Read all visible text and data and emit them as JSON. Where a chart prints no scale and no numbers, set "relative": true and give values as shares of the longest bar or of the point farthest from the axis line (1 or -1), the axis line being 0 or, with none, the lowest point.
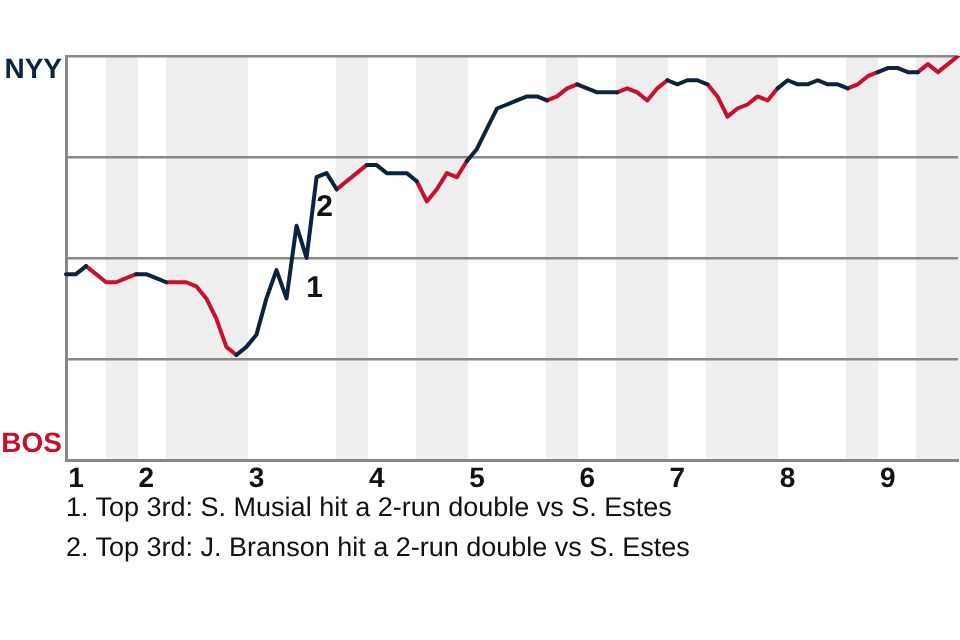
{
  "chart_data": {
    "type": "line",
    "relative": true,
    "categories": [
      null,
      "1",
      null,
      null,
      null,
      null,
      null,
      null,
      "2",
      null,
      null,
      null,
      null,
      null,
      null,
      null,
      null,
      null,
      null,
      "3",
      null,
      null,
      null,
      null,
      null,
      null,
      null,
      null,
      null,
      null,
      null,
      "4",
      null,
      null,
      null,
      null,
      null,
      null,
      null,
      null,
      null,
      "5",
      null,
      null,
      null,
      null,
      null,
      null,
      null,
      null,
      null,
      null,
      "6",
      null,
      null,
      null,
      null,
      null,
      null,
      null,
      null,
      "7",
      null,
      null,
      null,
      null,
      null,
      null,
      null,
      null,
      null,
      null,
      "8",
      null,
      null,
      null,
      null,
      null,
      null,
      null,
      null,
      null,
      "9",
      null,
      null,
      null,
      null,
      null,
      null,
      null
    ],
    "series": [
      {
        "color": "#0c2340",
        "values": [
          0.46,
          0.46,
          0.48,
          null,
          null,
          null,
          null,
          0.46,
          0.46,
          0.45,
          0.44,
          null,
          null,
          null,
          null,
          null,
          null,
          0.26,
          0.28,
          0.31,
          0.4,
          0.47,
          0.4,
          0.58,
          0.5,
          0.7,
          0.71,
          0.67,
          null,
          null,
          0.73,
          0.73,
          0.71,
          0.71,
          0.71,
          0.69,
          null,
          null,
          null,
          null,
          0.74,
          0.77,
          0.82,
          0.87,
          0.88,
          0.89,
          0.9,
          0.9,
          0.89,
          null,
          null,
          0.93,
          0.92,
          0.91,
          0.91,
          0.91,
          null,
          null,
          null,
          null,
          0.94,
          0.93,
          0.94,
          0.94,
          0.93,
          null,
          null,
          null,
          null,
          null,
          null,
          0.92,
          0.94,
          0.93,
          0.93,
          0.94,
          0.93,
          0.93,
          0.92,
          null,
          null,
          0.96,
          0.97,
          0.97,
          0.96,
          0.96,
          null,
          null,
          null,
          null
        ]
      },
      {
        "color": "#c8102e",
        "values": [
          null,
          null,
          0.48,
          0.46,
          0.44,
          0.44,
          0.45,
          0.46,
          null,
          null,
          0.44,
          0.44,
          0.44,
          0.43,
          0.4,
          0.35,
          0.28,
          0.26,
          null,
          null,
          null,
          null,
          null,
          null,
          null,
          null,
          null,
          0.67,
          0.69,
          0.71,
          0.73,
          null,
          null,
          null,
          null,
          0.69,
          0.64,
          0.67,
          0.71,
          0.7,
          0.74,
          null,
          null,
          null,
          null,
          null,
          null,
          null,
          0.89,
          0.9,
          0.92,
          0.93,
          null,
          null,
          null,
          0.91,
          0.92,
          0.91,
          0.89,
          0.92,
          0.94,
          null,
          null,
          null,
          0.93,
          0.9,
          0.85,
          0.87,
          0.88,
          0.9,
          0.89,
          0.92,
          null,
          null,
          null,
          null,
          null,
          null,
          0.92,
          0.93,
          0.95,
          0.96,
          null,
          null,
          null,
          0.96,
          0.98,
          0.96,
          0.98,
          1
        ]
      }
    ],
    "annotations": [
      "NYY",
      "BOS",
      {
        "text": "1",
        "y": 0.5
      },
      {
        "text": "2",
        "y": 0.7
      },
      "1. Top 3rd: S. Musial hit a 2-run double vs S. Estes",
      "2. Top 3rd: J. Branson hit a 2-run double vs S. Estes"
    ],
    "grid": "y",
    "legend": false,
    "marker": "none",
    "line_style": "solid"
  }
}
